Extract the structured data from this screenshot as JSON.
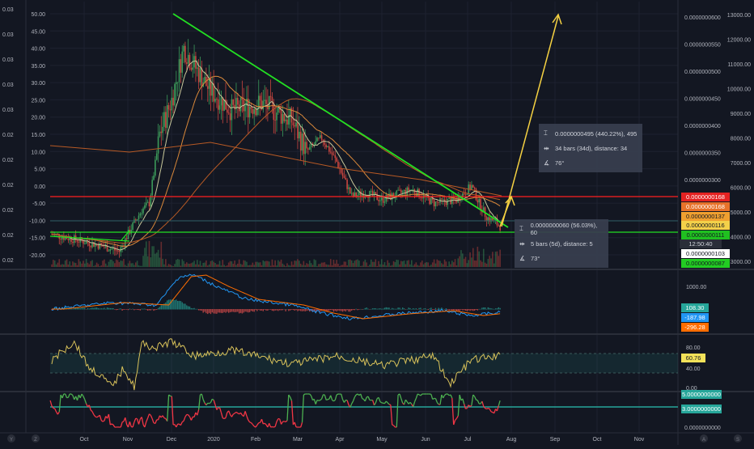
{
  "colors": {
    "background": "#131722",
    "grid": "#1e2230",
    "axis_text": "#b2b5be",
    "trendline": "#22e022",
    "support": "#22e022",
    "resistance": "#ff2020",
    "arrow": "#f5d142",
    "candle_up": "#3c9a5a",
    "candle_down": "#c8453f",
    "ma_fast": "#c8c89a",
    "ma_mid": "#d9883a",
    "ma_slow": "#b85a25",
    "macd": "#2196f3",
    "signal": "#ff6d00",
    "rsi": "#d9c25a",
    "stoch_up": "#4caf50",
    "stoch_down": "#f23645",
    "stoch_level": "#26a69a"
  },
  "axes": {
    "time_labels": [
      "Oct",
      "Nov",
      "Dec",
      "2020",
      "Feb",
      "Mar",
      "Apr",
      "May",
      "Jun",
      "Jul",
      "Aug",
      "Sep",
      "Oct",
      "Nov"
    ],
    "pct_labels": [
      "50.00",
      "45.00",
      "40.00",
      "35.00",
      "30.00",
      "25.00",
      "20.00",
      "15.00",
      "10.00",
      "5.00",
      "0.00",
      "-5.00",
      "-10.00",
      "-15.00",
      "-20.00"
    ],
    "left_labels": [
      "0.03",
      "0.03",
      "0.03",
      "0.03",
      "0.03",
      "0.02",
      "0.02",
      "0.02",
      "0.02",
      "0.02",
      "0.02"
    ],
    "price_labels": [
      "0.0000000600",
      "0.0000000550",
      "0.0000000500",
      "0.0000000450",
      "0.0000000400",
      "0.0000000350",
      "0.0000000300",
      "0.0000000250",
      "0.0000000200"
    ],
    "volume_labels": [
      "13000.00",
      "12000.00",
      "11000.00",
      "10000.00",
      "9000.00",
      "8000.00",
      "7000.00",
      "6000.00",
      "5000.00",
      "4000.00",
      "3000.00"
    ],
    "macd_labels": [
      "1000.00",
      "0.00"
    ],
    "rsi_labels": [
      "80.00",
      "40.00",
      "0.00"
    ],
    "stoch_labels": [
      "0.0000000000"
    ],
    "bottom_icons": [
      "Y",
      "Z",
      "A",
      "S"
    ]
  },
  "price_tags": [
    {
      "text": "0.0000000168",
      "bg": "#e52222",
      "color": "#ffffff"
    },
    {
      "text": "0.0000000168",
      "bg": "#e8722a",
      "color": "#ffffff"
    },
    {
      "text": "0.0000000137",
      "bg": "#f0a030",
      "color": "#131722"
    },
    {
      "text": "0.0000000116",
      "bg": "#f3d049",
      "color": "#131722"
    },
    {
      "text": "0.0000000111",
      "bg": "#20c020",
      "color": "#131722"
    },
    {
      "text": "0.0000000103",
      "bg": "#ffffff",
      "color": "#131722"
    },
    {
      "text": "0.0000000087",
      "bg": "#22cc22",
      "color": "#131722"
    }
  ],
  "time_tag": "12:50:40",
  "indicator_tags": {
    "macd": [
      {
        "text": "108.30",
        "bg": "#26a69a",
        "color": "#ffffff"
      },
      {
        "text": "-187.98",
        "bg": "#2196f3",
        "color": "#ffffff"
      },
      {
        "text": "-296.28",
        "bg": "#ff6d00",
        "color": "#ffffff"
      }
    ],
    "rsi": [
      {
        "text": "60.76",
        "bg": "#f3e25a",
        "color": "#131722"
      }
    ],
    "stoch": [
      {
        "text": "5.0000000000",
        "bg": "#26a69a",
        "color": "#ffffff"
      },
      {
        "text": "3.0000000000",
        "bg": "#26a69a",
        "color": "#ffffff"
      }
    ]
  },
  "measure_upper": {
    "price": "0.0000000495 (440.22%), 495",
    "bars": "34 bars (34d), distance: 34",
    "angle": "76°"
  },
  "measure_lower": {
    "price": "0.0000000060 (56.03%), 60",
    "bars": "5 bars (5d), distance: 5",
    "angle": "73°"
  }
}
